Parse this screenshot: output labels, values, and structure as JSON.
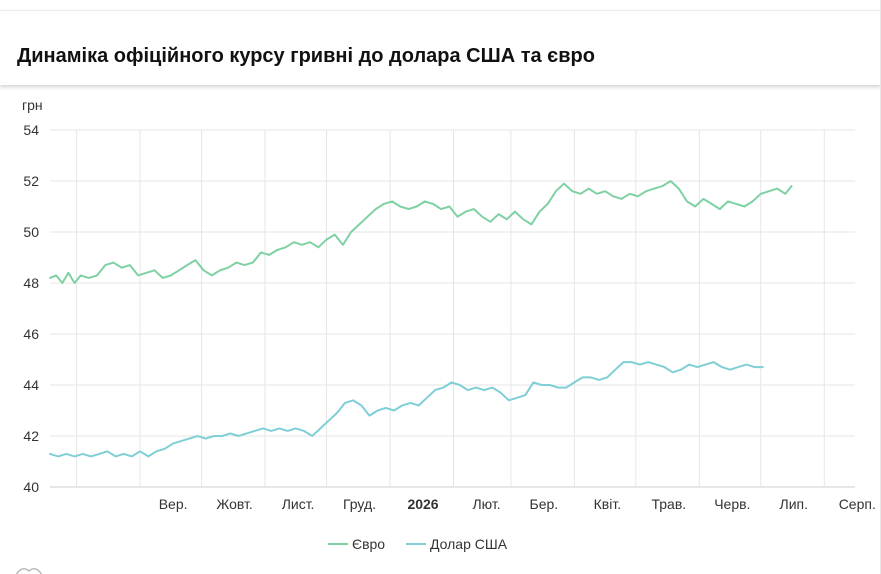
{
  "header": {
    "title": "Динаміка офіційного курсу гривні до долара США та євро"
  },
  "chart_data": {
    "type": "line",
    "ylabel": "грн",
    "ylim": [
      40,
      54
    ],
    "yticks": [
      40,
      42,
      44,
      46,
      48,
      50,
      52,
      54
    ],
    "xlim": [
      "2025-07-19",
      "2026-08-16"
    ],
    "xticks": [
      {
        "date": "2025-08-01",
        "label": "",
        "bold": false
      },
      {
        "date": "2025-09-01",
        "label": "Вер.",
        "bold": false
      },
      {
        "date": "2025-10-01",
        "label": "Жовт.",
        "bold": false
      },
      {
        "date": "2025-11-01",
        "label": "Лист.",
        "bold": false
      },
      {
        "date": "2025-12-01",
        "label": "Груд.",
        "bold": false
      },
      {
        "date": "2026-01-01",
        "label": "2026",
        "bold": true
      },
      {
        "date": "2026-02-01",
        "label": "Лют.",
        "bold": false
      },
      {
        "date": "2026-03-01",
        "label": "Бер.",
        "bold": false
      },
      {
        "date": "2026-04-01",
        "label": "Квіт.",
        "bold": false
      },
      {
        "date": "2026-05-01",
        "label": "Трав.",
        "bold": false
      },
      {
        "date": "2026-06-01",
        "label": "Черв.",
        "bold": false
      },
      {
        "date": "2026-07-01",
        "label": "Лип.",
        "bold": false
      },
      {
        "date": "2026-08-01",
        "label": "Серп.",
        "bold": false
      }
    ],
    "grid": true,
    "legend_position": "bottom-center",
    "series": [
      {
        "name": "Євро",
        "color": "#7fd1a4",
        "points": [
          [
            "2025-07-19",
            48.2
          ],
          [
            "2025-07-22",
            48.3
          ],
          [
            "2025-07-25",
            48.0
          ],
          [
            "2025-07-28",
            48.4
          ],
          [
            "2025-07-31",
            48.0
          ],
          [
            "2025-08-03",
            48.3
          ],
          [
            "2025-08-07",
            48.2
          ],
          [
            "2025-08-11",
            48.3
          ],
          [
            "2025-08-15",
            48.7
          ],
          [
            "2025-08-19",
            48.8
          ],
          [
            "2025-08-23",
            48.6
          ],
          [
            "2025-08-27",
            48.7
          ],
          [
            "2025-08-31",
            48.3
          ],
          [
            "2025-09-04",
            48.4
          ],
          [
            "2025-09-08",
            48.5
          ],
          [
            "2025-09-12",
            48.2
          ],
          [
            "2025-09-16",
            48.3
          ],
          [
            "2025-09-20",
            48.5
          ],
          [
            "2025-09-24",
            48.7
          ],
          [
            "2025-09-28",
            48.9
          ],
          [
            "2025-10-02",
            48.5
          ],
          [
            "2025-10-06",
            48.3
          ],
          [
            "2025-10-10",
            48.5
          ],
          [
            "2025-10-14",
            48.6
          ],
          [
            "2025-10-18",
            48.8
          ],
          [
            "2025-10-22",
            48.7
          ],
          [
            "2025-10-26",
            48.8
          ],
          [
            "2025-10-30",
            49.2
          ],
          [
            "2025-11-03",
            49.1
          ],
          [
            "2025-11-07",
            49.3
          ],
          [
            "2025-11-11",
            49.4
          ],
          [
            "2025-11-15",
            49.6
          ],
          [
            "2025-11-19",
            49.5
          ],
          [
            "2025-11-23",
            49.6
          ],
          [
            "2025-11-27",
            49.4
          ],
          [
            "2025-12-01",
            49.7
          ],
          [
            "2025-12-05",
            49.9
          ],
          [
            "2025-12-09",
            49.5
          ],
          [
            "2025-12-13",
            50.0
          ],
          [
            "2025-12-17",
            50.3
          ],
          [
            "2025-12-21",
            50.6
          ],
          [
            "2025-12-25",
            50.9
          ],
          [
            "2025-12-29",
            51.1
          ],
          [
            "2026-01-02",
            51.2
          ],
          [
            "2026-01-06",
            51.0
          ],
          [
            "2026-01-10",
            50.9
          ],
          [
            "2026-01-14",
            51.0
          ],
          [
            "2026-01-18",
            51.2
          ],
          [
            "2026-01-22",
            51.1
          ],
          [
            "2026-01-26",
            50.9
          ],
          [
            "2026-01-30",
            51.0
          ],
          [
            "2026-02-03",
            50.6
          ],
          [
            "2026-02-07",
            50.8
          ],
          [
            "2026-02-11",
            50.9
          ],
          [
            "2026-02-15",
            50.6
          ],
          [
            "2026-02-19",
            50.4
          ],
          [
            "2026-02-23",
            50.7
          ],
          [
            "2026-02-27",
            50.5
          ],
          [
            "2026-03-03",
            50.8
          ],
          [
            "2026-03-07",
            50.5
          ],
          [
            "2026-03-11",
            50.3
          ],
          [
            "2026-03-15",
            50.8
          ],
          [
            "2026-03-19",
            51.1
          ],
          [
            "2026-03-23",
            51.6
          ],
          [
            "2026-03-27",
            51.9
          ],
          [
            "2026-03-31",
            51.6
          ],
          [
            "2026-04-04",
            51.5
          ],
          [
            "2026-04-08",
            51.7
          ],
          [
            "2026-04-12",
            51.5
          ],
          [
            "2026-04-16",
            51.6
          ],
          [
            "2026-04-20",
            51.4
          ],
          [
            "2026-04-24",
            51.3
          ],
          [
            "2026-04-28",
            51.5
          ],
          [
            "2026-05-02",
            51.4
          ],
          [
            "2026-05-06",
            51.6
          ],
          [
            "2026-05-10",
            51.7
          ],
          [
            "2026-05-14",
            51.8
          ],
          [
            "2026-05-18",
            52.0
          ],
          [
            "2026-05-22",
            51.7
          ],
          [
            "2026-05-26",
            51.2
          ],
          [
            "2026-05-30",
            51.0
          ],
          [
            "2026-06-03",
            51.3
          ],
          [
            "2026-06-07",
            51.1
          ],
          [
            "2026-06-11",
            50.9
          ],
          [
            "2026-06-15",
            51.2
          ],
          [
            "2026-06-19",
            51.1
          ],
          [
            "2026-06-23",
            51.0
          ],
          [
            "2026-06-27",
            51.2
          ],
          [
            "2026-07-01",
            51.5
          ],
          [
            "2026-07-05",
            51.6
          ],
          [
            "2026-07-09",
            51.7
          ],
          [
            "2026-07-13",
            51.5
          ],
          [
            "2026-07-16",
            51.8
          ]
        ]
      },
      {
        "name": "Долар США",
        "color": "#7fcfd6",
        "points": [
          [
            "2025-07-19",
            41.3
          ],
          [
            "2025-07-23",
            41.2
          ],
          [
            "2025-07-27",
            41.3
          ],
          [
            "2025-07-31",
            41.2
          ],
          [
            "2025-08-04",
            41.3
          ],
          [
            "2025-08-08",
            41.2
          ],
          [
            "2025-08-12",
            41.3
          ],
          [
            "2025-08-16",
            41.4
          ],
          [
            "2025-08-20",
            41.2
          ],
          [
            "2025-08-24",
            41.3
          ],
          [
            "2025-08-28",
            41.2
          ],
          [
            "2025-09-01",
            41.4
          ],
          [
            "2025-09-05",
            41.2
          ],
          [
            "2025-09-09",
            41.4
          ],
          [
            "2025-09-13",
            41.5
          ],
          [
            "2025-09-17",
            41.7
          ],
          [
            "2025-09-21",
            41.8
          ],
          [
            "2025-09-25",
            41.9
          ],
          [
            "2025-09-29",
            42.0
          ],
          [
            "2025-10-03",
            41.9
          ],
          [
            "2025-10-07",
            42.0
          ],
          [
            "2025-10-11",
            42.0
          ],
          [
            "2025-10-15",
            42.1
          ],
          [
            "2025-10-19",
            42.0
          ],
          [
            "2025-10-23",
            42.1
          ],
          [
            "2025-10-27",
            42.2
          ],
          [
            "2025-10-31",
            42.3
          ],
          [
            "2025-11-04",
            42.2
          ],
          [
            "2025-11-08",
            42.3
          ],
          [
            "2025-11-12",
            42.2
          ],
          [
            "2025-11-16",
            42.3
          ],
          [
            "2025-11-20",
            42.2
          ],
          [
            "2025-11-24",
            42.0
          ],
          [
            "2025-11-28",
            42.3
          ],
          [
            "2025-12-02",
            42.6
          ],
          [
            "2025-12-06",
            42.9
          ],
          [
            "2025-12-10",
            43.3
          ],
          [
            "2025-12-14",
            43.4
          ],
          [
            "2025-12-18",
            43.2
          ],
          [
            "2025-12-22",
            42.8
          ],
          [
            "2025-12-26",
            43.0
          ],
          [
            "2025-12-30",
            43.1
          ],
          [
            "2026-01-03",
            43.0
          ],
          [
            "2026-01-07",
            43.2
          ],
          [
            "2026-01-11",
            43.3
          ],
          [
            "2026-01-15",
            43.2
          ],
          [
            "2026-01-19",
            43.5
          ],
          [
            "2026-01-23",
            43.8
          ],
          [
            "2026-01-27",
            43.9
          ],
          [
            "2026-01-31",
            44.1
          ],
          [
            "2026-02-04",
            44.0
          ],
          [
            "2026-02-08",
            43.8
          ],
          [
            "2026-02-12",
            43.9
          ],
          [
            "2026-02-16",
            43.8
          ],
          [
            "2026-02-20",
            43.9
          ],
          [
            "2026-02-24",
            43.7
          ],
          [
            "2026-02-28",
            43.4
          ],
          [
            "2026-03-04",
            43.5
          ],
          [
            "2026-03-08",
            43.6
          ],
          [
            "2026-03-12",
            44.1
          ],
          [
            "2026-03-16",
            44.0
          ],
          [
            "2026-03-20",
            44.0
          ],
          [
            "2026-03-24",
            43.9
          ],
          [
            "2026-03-28",
            43.9
          ],
          [
            "2026-04-01",
            44.1
          ],
          [
            "2026-04-05",
            44.3
          ],
          [
            "2026-04-09",
            44.3
          ],
          [
            "2026-04-13",
            44.2
          ],
          [
            "2026-04-17",
            44.3
          ],
          [
            "2026-04-21",
            44.6
          ],
          [
            "2026-04-25",
            44.9
          ],
          [
            "2026-04-29",
            44.9
          ],
          [
            "2026-05-03",
            44.8
          ],
          [
            "2026-05-07",
            44.9
          ],
          [
            "2026-05-11",
            44.8
          ],
          [
            "2026-05-15",
            44.7
          ],
          [
            "2026-05-19",
            44.5
          ],
          [
            "2026-05-23",
            44.6
          ],
          [
            "2026-05-27",
            44.8
          ],
          [
            "2026-05-31",
            44.7
          ],
          [
            "2026-06-04",
            44.8
          ],
          [
            "2026-06-08",
            44.9
          ],
          [
            "2026-06-12",
            44.7
          ],
          [
            "2026-06-16",
            44.6
          ],
          [
            "2026-06-20",
            44.7
          ],
          [
            "2026-06-24",
            44.8
          ],
          [
            "2026-06-28",
            44.7
          ],
          [
            "2026-07-02",
            44.7
          ]
        ]
      }
    ]
  }
}
